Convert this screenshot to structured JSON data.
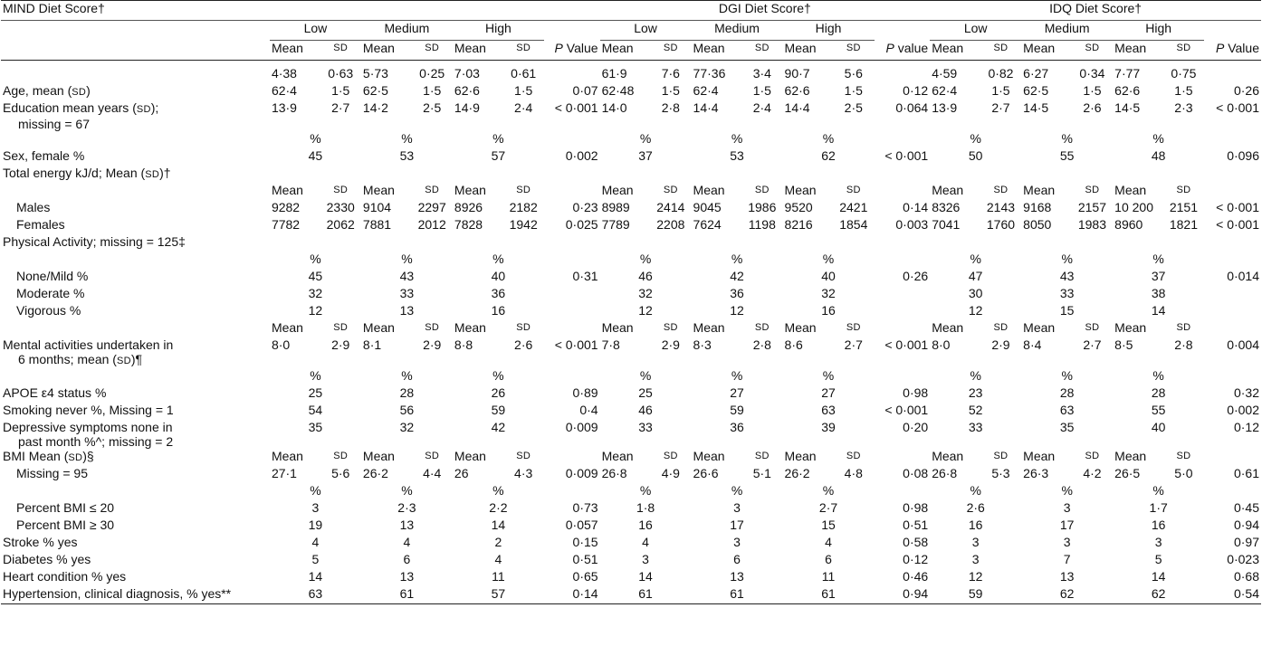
{
  "header": {
    "mind_title": "MIND Diet Score†",
    "dgi_title": "DGI Diet Score†",
    "idq_title": "IDQ Diet Score†",
    "levels": [
      "Low",
      "Medium",
      "High"
    ],
    "mean": "Mean",
    "sd": "SD",
    "p_value_cap": "P Value",
    "p_value_lower": "P value",
    "p_label": "P"
  },
  "scores_row": [
    "4·38",
    "0·63",
    "5·73",
    "0·25",
    "7·03",
    "0·61",
    "",
    "61·9",
    "7·6",
    "77·36",
    "3·4",
    "90·7",
    "5·6",
    "",
    "4·59",
    "0·82",
    "6·27",
    "0·34",
    "7·77",
    "0·75",
    ""
  ],
  "rows": {
    "age": {
      "label": "Age, mean (SD)",
      "vals": [
        "62·4",
        "1·5",
        "62·5",
        "1·5",
        "62·6",
        "1·5",
        "0·07",
        "62·48",
        "1·5",
        "62·4",
        "1·5",
        "62·6",
        "1·5",
        "0·12",
        "62·4",
        "1·5",
        "62·5",
        "1·5",
        "62·6",
        "1·5",
        "0·26"
      ]
    },
    "education": {
      "label": "Education mean years (SD);",
      "label2": "missing = 67",
      "vals": [
        "13·9",
        "2·7",
        "14·2",
        "2·5",
        "14·9",
        "2·4",
        "< 0·001",
        "14·0",
        "2·8",
        "14·4",
        "2·4",
        "14·4",
        "2·5",
        "0·064",
        "13·9",
        "2·7",
        "14·5",
        "2·6",
        "14·5",
        "2·3",
        "< 0·001"
      ]
    },
    "sex": {
      "label": "Sex, female %",
      "vals": [
        "45",
        "53",
        "57",
        "0·002",
        "37",
        "53",
        "62",
        "< 0·001",
        "50",
        "55",
        "48",
        "0·096"
      ]
    },
    "energy": {
      "label": "Total energy kJ/d; Mean (SD)†"
    },
    "males": {
      "label": "Males",
      "vals": [
        "9282",
        "2330",
        "9104",
        "2297",
        "8926",
        "2182",
        "0·23",
        "8989",
        "2414",
        "9045",
        "1986",
        "9520",
        "2421",
        "0·14",
        "8326",
        "2143",
        "9168",
        "2157",
        "10 200",
        "2151",
        "< 0·001"
      ]
    },
    "females": {
      "label": "Females",
      "vals": [
        "7782",
        "2062",
        "7881",
        "2012",
        "7828",
        "1942",
        "0·025",
        "7789",
        "2208",
        "7624",
        "1198",
        "8216",
        "1854",
        "0·003",
        "7041",
        "1760",
        "8050",
        "1983",
        "8960",
        "1821",
        "< 0·001"
      ]
    },
    "physical": {
      "label": "Physical Activity; missing = 125‡"
    },
    "none_mild": {
      "label": "None/Mild %",
      "vals": [
        "45",
        "43",
        "40",
        "0·31",
        "46",
        "42",
        "40",
        "0·26",
        "47",
        "43",
        "37",
        "0·014"
      ]
    },
    "moderate": {
      "label": "Moderate %",
      "vals": [
        "32",
        "33",
        "36",
        "",
        "32",
        "36",
        "32",
        "",
        "30",
        "33",
        "38",
        ""
      ]
    },
    "vigorous": {
      "label": "Vigorous %",
      "vals": [
        "12",
        "13",
        "16",
        "",
        "12",
        "12",
        "16",
        "",
        "12",
        "15",
        "14",
        ""
      ]
    },
    "mental": {
      "label": "Mental activities undertaken in",
      "label2": "6 months; mean (SD)¶",
      "vals": [
        "8·0",
        "2·9",
        "8·1",
        "2·9",
        "8·8",
        "2·6",
        "< 0·001",
        "7·8",
        "2·9",
        "8·3",
        "2·8",
        "8·6",
        "2·7",
        "< 0·001",
        "8·0",
        "2·9",
        "8·4",
        "2·7",
        "8·5",
        "2·8",
        "0·004"
      ]
    },
    "apoe": {
      "label": "APOE ε4 status %",
      "vals": [
        "25",
        "28",
        "26",
        "0·89",
        "25",
        "27",
        "27",
        "0·98",
        "23",
        "28",
        "28",
        "0·32"
      ]
    },
    "smoking": {
      "label": "Smoking never %, Missing = 1",
      "vals": [
        "54",
        "56",
        "59",
        "0·4",
        "46",
        "59",
        "63",
        "< 0·001",
        "52",
        "63",
        "55",
        "0·002"
      ]
    },
    "depressive": {
      "label": "Depressive symptoms none in",
      "label2": "past month %^; missing = 2",
      "vals": [
        "35",
        "32",
        "42",
        "0·009",
        "33",
        "36",
        "39",
        "0·20",
        "33",
        "35",
        "40",
        "0·12"
      ]
    },
    "bmi": {
      "label": "BMI Mean (SD)§"
    },
    "bmi_missing": {
      "label": "Missing = 95",
      "vals": [
        "27·1",
        "5·6",
        "26·2",
        "4·4",
        "26",
        "4·3",
        "0·009",
        "26·8",
        "4·9",
        "26·6",
        "5·1",
        "26·2",
        "4·8",
        "0·08",
        "26·8",
        "5·3",
        "26·3",
        "4·2",
        "26·5",
        "5·0",
        "0·61"
      ]
    },
    "bmi_le20": {
      "label": "Percent BMI ≤ 20",
      "vals": [
        "3",
        "2·3",
        "2·2",
        "0·73",
        "1·8",
        "3",
        "2·7",
        "0·98",
        "2·6",
        "3",
        "1·7",
        "0·45"
      ]
    },
    "bmi_ge30": {
      "label": "Percent BMI ≥ 30",
      "vals": [
        "19",
        "13",
        "14",
        "0·057",
        "16",
        "17",
        "15",
        "0·51",
        "16",
        "17",
        "16",
        "0·94"
      ]
    },
    "stroke": {
      "label": "Stroke % yes",
      "vals": [
        "4",
        "4",
        "2",
        "0·15",
        "4",
        "3",
        "4",
        "0·58",
        "3",
        "3",
        "3",
        "0·97"
      ]
    },
    "diabetes": {
      "label": "Diabetes % yes",
      "vals": [
        "5",
        "6",
        "4",
        "0·51",
        "3",
        "6",
        "6",
        "0·12",
        "3",
        "7",
        "5",
        "0·023"
      ]
    },
    "heart": {
      "label": "Heart condition % yes",
      "vals": [
        "14",
        "13",
        "11",
        "0·65",
        "14",
        "13",
        "11",
        "0·46",
        "12",
        "13",
        "14",
        "0·68"
      ]
    },
    "hypertension": {
      "label": "Hypertension, clinical diagnosis, % yes**",
      "vals": [
        "63",
        "61",
        "57",
        "0·14",
        "61",
        "61",
        "61",
        "0·94",
        "59",
        "62",
        "62",
        "0·54"
      ]
    }
  },
  "pct": "%"
}
